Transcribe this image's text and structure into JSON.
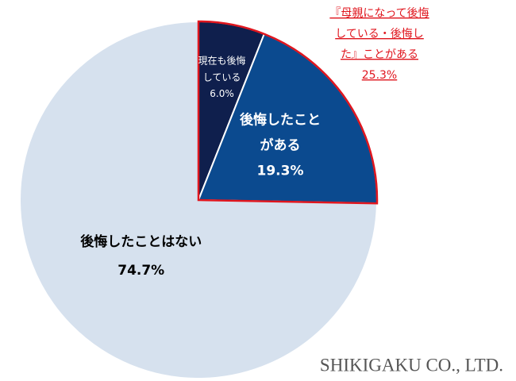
{
  "chart_data": {
    "type": "pie",
    "categories": [
      "現在も後悔している",
      "後悔したことがある",
      "後悔したことはない"
    ],
    "values": [
      6.0,
      19.3,
      74.7
    ],
    "value_labels": [
      "6.0%",
      "19.3%",
      "74.7%"
    ],
    "colors": [
      "#0f1f4d",
      "#0b4a8f",
      "#d6e1ee"
    ],
    "label_colors": [
      "#ffffff",
      "#ffffff",
      "#000000"
    ],
    "annotation": {
      "lines": [
        "『母親になって後悔",
        "している・後悔し",
        "た』ことがある"
      ],
      "value": 25.3,
      "value_label": "25.3%",
      "color": "#e0161e"
    },
    "footer": "SHIKIGAKU CO., LTD."
  }
}
